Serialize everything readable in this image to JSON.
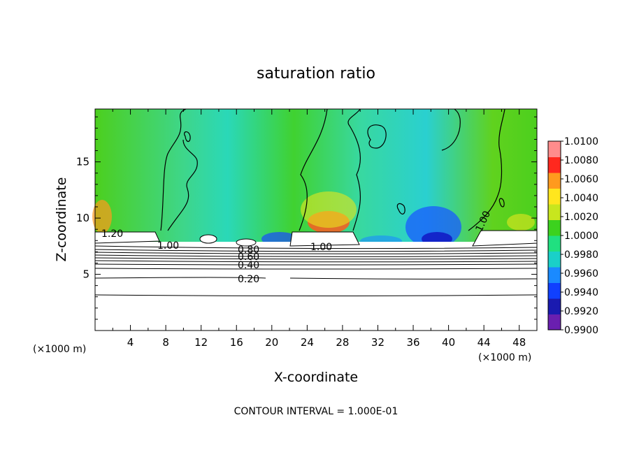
{
  "chart_data": {
    "type": "heatmap",
    "title": "saturation ratio",
    "xlabel": "X-coordinate",
    "ylabel": "Z-coordinate",
    "x_unit_left": "(×1000 m)",
    "x_unit_right": "(×1000 m)",
    "xlim": [
      0,
      50
    ],
    "ylim": [
      0,
      19.7
    ],
    "x_ticks": [
      "4",
      "8",
      "12",
      "16",
      "20",
      "24",
      "28",
      "32",
      "36",
      "40",
      "44",
      "48"
    ],
    "y_ticks": [
      "5",
      "10",
      "15"
    ],
    "colorbar": {
      "min": 0.99,
      "max": 1.01,
      "labels": [
        "1.0100",
        "1.0080",
        "1.0060",
        "1.0040",
        "1.0020",
        "1.0000",
        "0.9980",
        "0.9960",
        "0.9940",
        "0.9920",
        "0.9900"
      ],
      "colors": [
        "#6a1fb0",
        "#1a1ab0",
        "#1040ff",
        "#1a8aff",
        "#1ad0c8",
        "#20e080",
        "#3cd21e",
        "#c8e61e",
        "#ffe61e",
        "#ff9a1e",
        "#ff281e",
        "#ff8c8c"
      ]
    },
    "contour_labels": [
      "1.20",
      "1.00",
      "0.80",
      "0.60",
      "0.40",
      "0.20",
      "1.00",
      "1.00"
    ],
    "annotation": "CONTOUR INTERVAL = 1.000E-01"
  }
}
